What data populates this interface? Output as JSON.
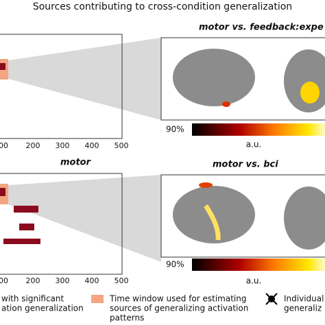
{
  "header": {
    "title": "Sources contributing to cross-condition generalization"
  },
  "panels": [
    {
      "left_ticks": [
        "00",
        "200",
        "300",
        "400",
        "500"
      ],
      "right_title": "motor vs. feedback:expe",
      "colorbar": {
        "min_label": "90%",
        "unit": "a.u."
      }
    },
    {
      "left_title": "motor",
      "left_ticks": [
        "00",
        "200",
        "300",
        "400",
        "500"
      ],
      "right_title": "motor vs. bci",
      "colorbar": {
        "min_label": "90%",
        "unit": "a.u."
      }
    }
  ],
  "legend": [
    {
      "lines": [
        "with significant",
        "ation generalization"
      ]
    },
    {
      "lines": [
        "Time window used for estimating",
        "sources of generalizing activation",
        "patterns"
      ]
    },
    {
      "lines": [
        "Individual",
        "generaliz"
      ]
    }
  ]
}
